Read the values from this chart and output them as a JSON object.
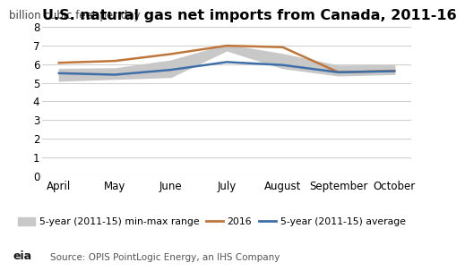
{
  "title": "U.S. natural gas net imports from Canada, 2011-16",
  "ylabel": "billion cubic feet per day",
  "source": "Source: OPIS PointLogic Energy, an IHS Company",
  "months": [
    "April",
    "May",
    "June",
    "July",
    "August",
    "September",
    "October"
  ],
  "line_2016": [
    6.08,
    6.18,
    6.55,
    7.0,
    6.92,
    5.57,
    5.65
  ],
  "avg_5yr": [
    5.52,
    5.44,
    5.7,
    6.12,
    5.96,
    5.57,
    5.63
  ],
  "min_5yr": [
    5.12,
    5.22,
    5.32,
    6.75,
    5.8,
    5.4,
    5.48
  ],
  "max_5yr": [
    5.75,
    5.78,
    6.2,
    7.05,
    6.55,
    5.92,
    5.95
  ],
  "ylim": [
    0,
    8
  ],
  "yticks": [
    0,
    1,
    2,
    3,
    4,
    5,
    6,
    7,
    8
  ],
  "color_2016": "#c0763a",
  "color_avg": "#3e6fa8",
  "color_band": "#c8c8c8",
  "bg_color": "#ffffff",
  "grid_color": "#d0d0d0",
  "title_fontsize": 11.5,
  "label_fontsize": 8.5,
  "tick_fontsize": 8.5,
  "legend_fontsize": 7.8
}
